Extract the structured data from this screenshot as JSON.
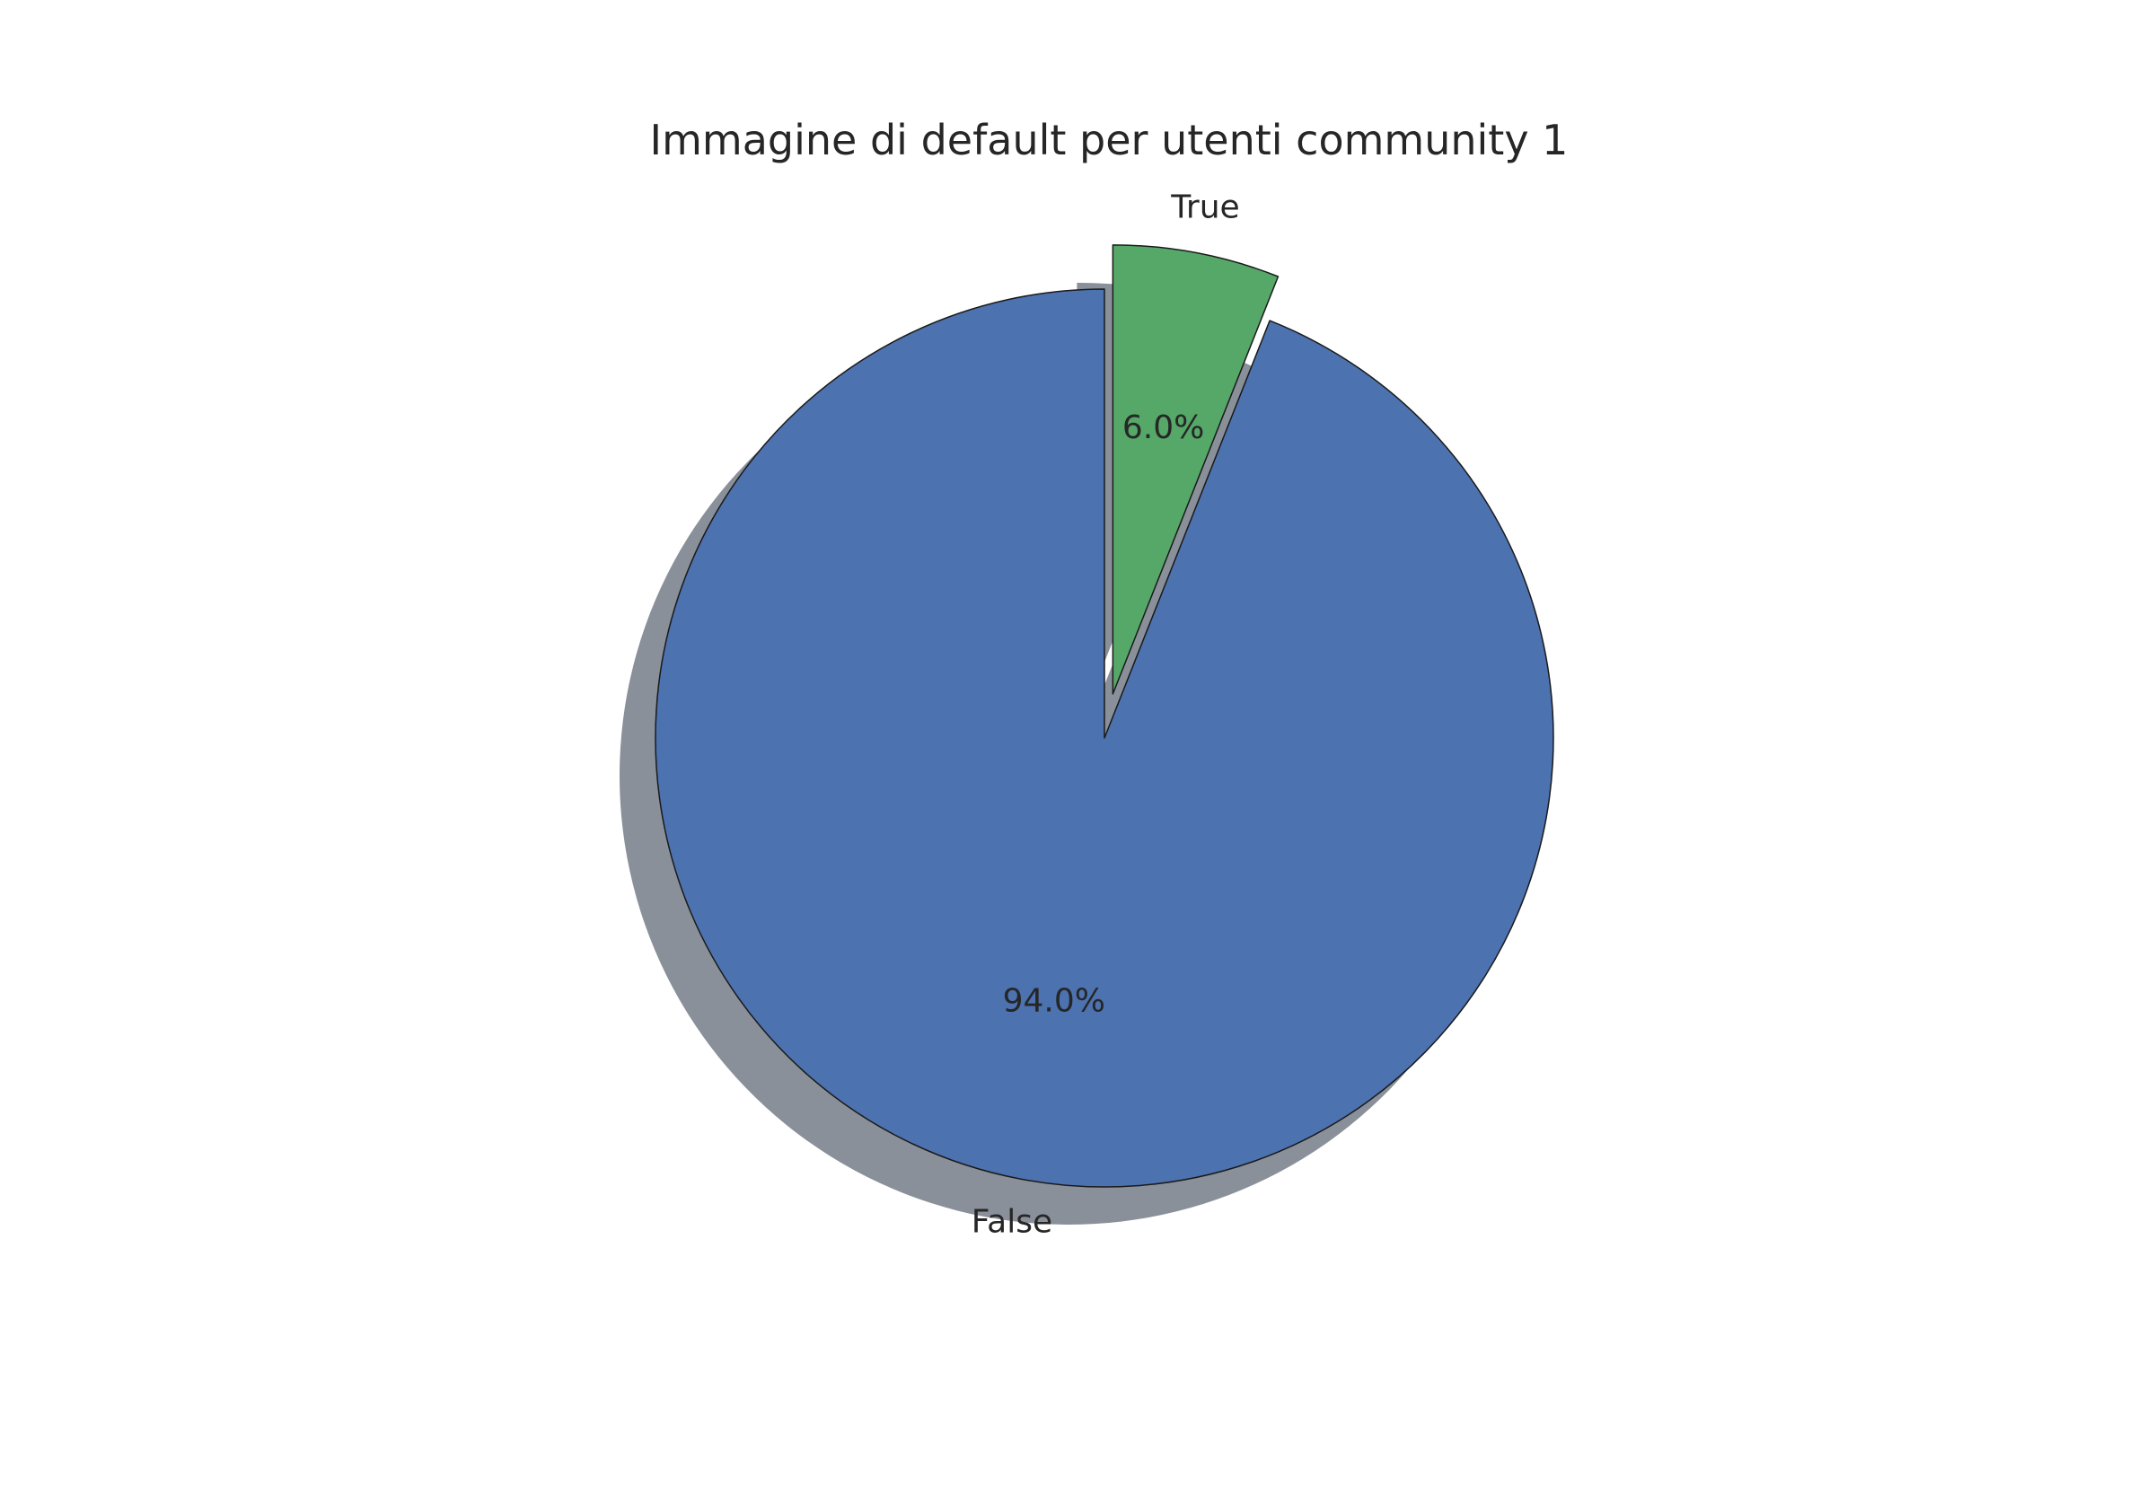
{
  "chart_data": {
    "type": "pie",
    "title": "Immagine di default per utenti community 1",
    "labels": [
      "False",
      "True"
    ],
    "values": [
      94.0,
      6.0
    ],
    "value_labels": [
      "94.0%",
      "6.0%"
    ],
    "colors": [
      "#4c72b0",
      "#55a868"
    ],
    "shadow_color": "#8a909a",
    "explode": [
      0,
      0.1
    ],
    "start_angle_deg": 90,
    "direction": "counterclockwise",
    "shadow": true,
    "legend": "none"
  }
}
